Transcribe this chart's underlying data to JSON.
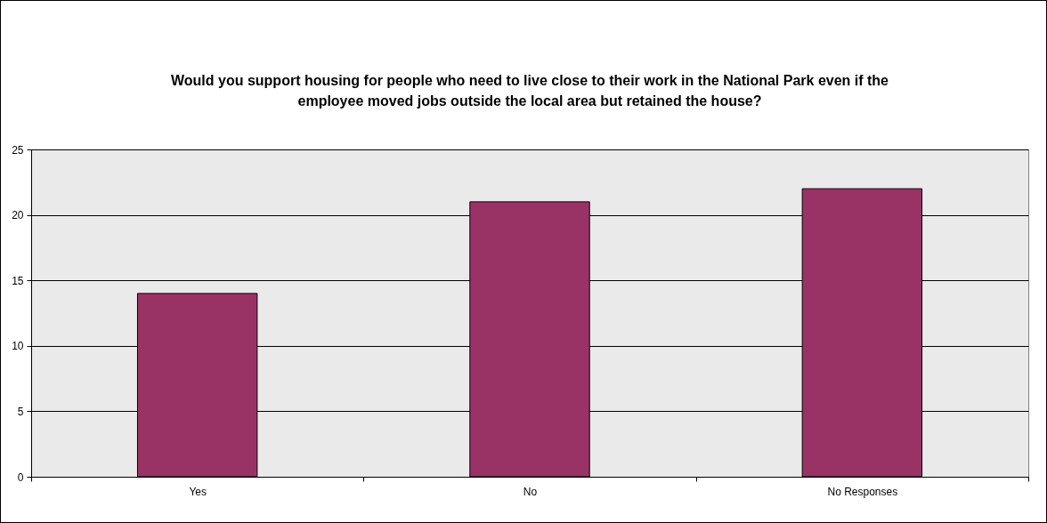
{
  "chart_data": {
    "type": "bar",
    "title": "Would you support housing for people who need to live close to their work in the National Park even if the employee moved jobs outside the local area but retained the house?",
    "categories": [
      "Yes",
      "No",
      "No Responses"
    ],
    "values": [
      14,
      21,
      22
    ],
    "color": "#993366",
    "ylim": [
      0,
      25
    ],
    "yticks": [
      0,
      5,
      10,
      15,
      20,
      25
    ],
    "grid": "y",
    "legend": false
  }
}
